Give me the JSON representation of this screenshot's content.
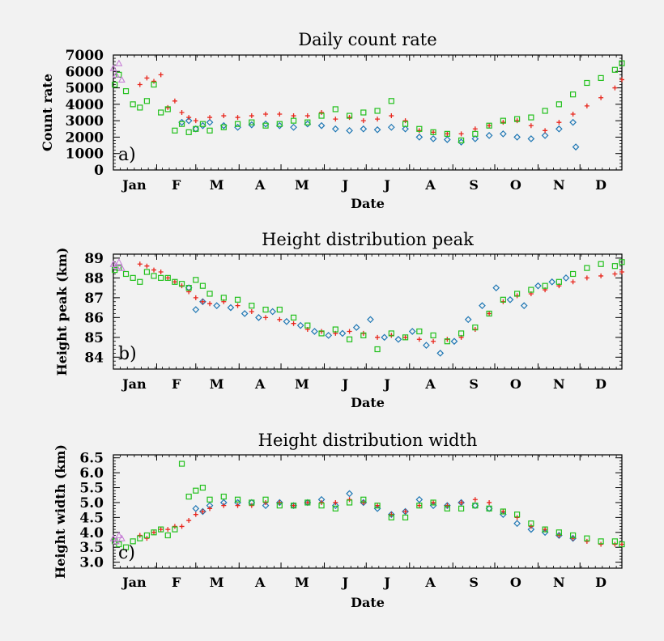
{
  "chart_data": [
    {
      "type": "scatter",
      "title": "Daily count rate",
      "ylabel": "Count rate",
      "xlabel": "Date",
      "panel_label": "a)",
      "x_tick_labels": [
        "Jan",
        "F",
        "M",
        "A",
        "M",
        "J",
        "J",
        "A",
        "S",
        "O",
        "N",
        "D"
      ],
      "x_unit": "day of year",
      "xlim": [
        1,
        365
      ],
      "ylim": [
        0,
        7000
      ],
      "y_ticks": [
        0,
        1000,
        2000,
        3000,
        4000,
        5000,
        6000,
        7000
      ],
      "y_tick_labels": [
        "0",
        "1000",
        "2000",
        "3000",
        "4000",
        "5000",
        "6000",
        "7000"
      ],
      "series": [
        {
          "color": "#1f77b4",
          "marker": "diamond",
          "x": [
            50,
            55,
            60,
            65,
            70,
            80,
            90,
            100,
            110,
            120,
            130,
            140,
            150,
            160,
            170,
            180,
            190,
            200,
            210,
            220,
            230,
            240,
            250,
            260,
            270,
            280,
            290,
            300,
            310,
            320,
            330,
            332
          ],
          "y": [
            2900,
            3000,
            2500,
            2700,
            2900,
            2700,
            2600,
            2750,
            2800,
            2700,
            2600,
            2800,
            2700,
            2500,
            2400,
            2500,
            2450,
            2600,
            2500,
            2000,
            1900,
            1850,
            1700,
            1900,
            2100,
            2200,
            2000,
            1900,
            2100,
            2500,
            2900,
            1400
          ]
        },
        {
          "color": "#e8261c",
          "marker": "plus",
          "x": [
            20,
            25,
            30,
            35,
            40,
            45,
            50,
            55,
            60,
            70,
            80,
            90,
            100,
            110,
            120,
            130,
            140,
            150,
            160,
            170,
            180,
            190,
            200,
            210,
            220,
            230,
            240,
            250,
            260,
            270,
            280,
            290,
            300,
            310,
            320,
            330,
            340,
            350,
            360,
            365
          ],
          "y": [
            5200,
            5600,
            5400,
            5800,
            3800,
            4200,
            3500,
            3200,
            3000,
            3200,
            3300,
            3200,
            3300,
            3400,
            3400,
            3300,
            3300,
            3500,
            3100,
            3200,
            3000,
            3100,
            3300,
            3000,
            2400,
            2300,
            2200,
            2200,
            2500,
            2700,
            2900,
            3000,
            2700,
            2400,
            2900,
            3400,
            3900,
            4400,
            5000,
            5500
          ]
        },
        {
          "color": "#22c01c",
          "marker": "square",
          "x": [
            2,
            5,
            10,
            15,
            20,
            25,
            30,
            35,
            40,
            45,
            50,
            55,
            60,
            65,
            70,
            80,
            90,
            100,
            110,
            120,
            130,
            140,
            150,
            160,
            170,
            180,
            190,
            200,
            210,
            220,
            230,
            240,
            250,
            260,
            270,
            280,
            290,
            300,
            310,
            320,
            330,
            340,
            350,
            360,
            365
          ],
          "y": [
            5200,
            5800,
            4800,
            4000,
            3800,
            4200,
            5200,
            3500,
            3700,
            2400,
            2800,
            2300,
            2500,
            2800,
            2400,
            2600,
            2800,
            2900,
            2700,
            2800,
            3000,
            2900,
            3300,
            3700,
            3300,
            3500,
            3600,
            4200,
            2800,
            2500,
            2300,
            2200,
            1800,
            2200,
            2700,
            3000,
            3100,
            3200,
            3600,
            4000,
            4600,
            5300,
            5600,
            6100,
            6500
          ]
        },
        {
          "color": "#c77fd6",
          "marker": "triangle",
          "x": [
            1,
            3,
            5,
            7
          ],
          "y": [
            6200,
            5800,
            6500,
            5500
          ]
        }
      ]
    },
    {
      "type": "scatter",
      "title": "Height distribution peak",
      "ylabel": "Height peak (km)",
      "xlabel": "Date",
      "panel_label": "b)",
      "x_tick_labels": [
        "Jan",
        "F",
        "M",
        "A",
        "M",
        "J",
        "J",
        "A",
        "S",
        "O",
        "N",
        "D"
      ],
      "x_unit": "day of year",
      "xlim": [
        1,
        365
      ],
      "ylim": [
        83.4,
        89.2
      ],
      "y_ticks": [
        84,
        85,
        86,
        87,
        88,
        89
      ],
      "y_tick_labels": [
        "84",
        "85",
        "86",
        "87",
        "88",
        "89"
      ],
      "series": [
        {
          "color": "#1f77b4",
          "marker": "diamond",
          "x": [
            55,
            60,
            65,
            75,
            85,
            95,
            105,
            115,
            125,
            135,
            145,
            155,
            165,
            175,
            185,
            195,
            205,
            215,
            225,
            235,
            245,
            255,
            265,
            275,
            285,
            295,
            305,
            315,
            325
          ],
          "y": [
            87.5,
            86.4,
            86.8,
            86.6,
            86.5,
            86.2,
            86.0,
            86.3,
            85.8,
            85.6,
            85.3,
            85.1,
            85.2,
            85.5,
            85.9,
            85.0,
            84.9,
            85.3,
            84.6,
            84.2,
            84.8,
            85.9,
            86.6,
            87.5,
            86.9,
            86.6,
            87.6,
            87.8,
            88.0
          ]
        },
        {
          "color": "#e8261c",
          "marker": "plus",
          "x": [
            20,
            25,
            30,
            35,
            40,
            45,
            50,
            55,
            60,
            65,
            70,
            80,
            90,
            100,
            110,
            120,
            130,
            140,
            150,
            160,
            170,
            180,
            190,
            200,
            210,
            220,
            230,
            240,
            250,
            260,
            270,
            280,
            290,
            300,
            310,
            320,
            330,
            340,
            350,
            360,
            365
          ],
          "y": [
            88.7,
            88.6,
            88.4,
            88.3,
            88.0,
            87.8,
            87.6,
            87.3,
            87.0,
            86.8,
            86.7,
            86.8,
            86.6,
            86.3,
            86.0,
            85.9,
            85.7,
            85.4,
            85.3,
            85.2,
            85.3,
            85.2,
            85.0,
            85.1,
            85.0,
            84.9,
            84.8,
            84.9,
            85.0,
            85.4,
            86.2,
            86.8,
            87.1,
            87.2,
            87.4,
            87.6,
            87.8,
            88.0,
            88.1,
            88.2,
            88.3
          ]
        },
        {
          "color": "#22c01c",
          "marker": "square",
          "x": [
            2,
            5,
            10,
            15,
            20,
            25,
            30,
            35,
            40,
            45,
            50,
            55,
            60,
            65,
            70,
            80,
            90,
            100,
            110,
            120,
            130,
            140,
            150,
            160,
            170,
            180,
            190,
            200,
            210,
            220,
            230,
            240,
            250,
            260,
            270,
            280,
            290,
            300,
            310,
            320,
            330,
            340,
            350,
            360,
            365
          ],
          "y": [
            88.4,
            88.5,
            88.2,
            88.0,
            87.8,
            88.3,
            88.1,
            88.0,
            88.0,
            87.8,
            87.7,
            87.5,
            87.9,
            87.6,
            87.2,
            87.0,
            86.9,
            86.6,
            86.4,
            86.4,
            86.0,
            85.6,
            85.2,
            85.4,
            84.9,
            85.1,
            84.4,
            85.2,
            85.0,
            85.3,
            85.1,
            84.8,
            85.2,
            85.5,
            86.2,
            86.9,
            87.2,
            87.4,
            87.6,
            87.8,
            88.2,
            88.5,
            88.7,
            88.6,
            88.8
          ]
        },
        {
          "color": "#c77fd6",
          "marker": "triangle",
          "x": [
            1,
            3,
            5,
            7
          ],
          "y": [
            88.7,
            88.6,
            88.8,
            88.5
          ]
        }
      ]
    },
    {
      "type": "scatter",
      "title": "Height distribution width",
      "ylabel": "Height width (km)",
      "xlabel": "Date",
      "panel_label": "c)",
      "x_tick_labels": [
        "Jan",
        "F",
        "M",
        "A",
        "M",
        "J",
        "J",
        "A",
        "S",
        "O",
        "N",
        "D"
      ],
      "x_unit": "day of year",
      "xlim": [
        1,
        365
      ],
      "ylim": [
        2.8,
        6.6
      ],
      "y_ticks": [
        3.0,
        3.5,
        4.0,
        4.5,
        5.0,
        5.5,
        6.0,
        6.5
      ],
      "y_tick_labels": [
        "3.0",
        "3.5",
        "4.0",
        "4.5",
        "5.0",
        "5.5",
        "6.0",
        "6.5"
      ],
      "series": [
        {
          "color": "#1f77b4",
          "marker": "diamond",
          "x": [
            60,
            65,
            70,
            80,
            90,
            100,
            110,
            120,
            130,
            140,
            150,
            160,
            170,
            180,
            190,
            200,
            210,
            220,
            230,
            240,
            250,
            260,
            270,
            280,
            290,
            300,
            310,
            320,
            330
          ],
          "y": [
            4.8,
            4.7,
            4.9,
            5.0,
            5.0,
            5.0,
            4.9,
            5.0,
            4.9,
            5.0,
            5.1,
            4.9,
            5.3,
            5.0,
            4.8,
            4.6,
            4.7,
            5.1,
            4.9,
            4.9,
            5.0,
            4.9,
            4.8,
            4.6,
            4.3,
            4.1,
            4.0,
            3.9,
            3.8
          ]
        },
        {
          "color": "#e8261c",
          "marker": "plus",
          "x": [
            20,
            25,
            30,
            35,
            40,
            45,
            50,
            55,
            60,
            65,
            70,
            80,
            90,
            100,
            110,
            120,
            130,
            140,
            150,
            160,
            170,
            180,
            190,
            200,
            210,
            220,
            230,
            240,
            250,
            260,
            270,
            280,
            290,
            300,
            310,
            320,
            330,
            340,
            350,
            360,
            365
          ],
          "y": [
            3.9,
            3.8,
            4.0,
            4.1,
            4.1,
            4.2,
            4.2,
            4.4,
            4.6,
            4.7,
            4.8,
            4.9,
            4.9,
            4.9,
            5.0,
            5.0,
            4.9,
            5.0,
            5.0,
            5.0,
            5.1,
            5.0,
            4.9,
            4.6,
            4.7,
            4.9,
            5.0,
            4.9,
            5.0,
            5.1,
            5.0,
            4.7,
            4.5,
            4.2,
            4.1,
            3.9,
            3.8,
            3.7,
            3.6,
            3.6,
            3.6
          ]
        },
        {
          "color": "#22c01c",
          "marker": "square",
          "x": [
            2,
            5,
            10,
            15,
            20,
            25,
            30,
            35,
            40,
            45,
            50,
            55,
            60,
            65,
            70,
            80,
            90,
            100,
            110,
            120,
            130,
            140,
            150,
            160,
            170,
            180,
            190,
            200,
            210,
            220,
            230,
            240,
            250,
            260,
            270,
            280,
            290,
            300,
            310,
            320,
            330,
            340,
            350,
            360,
            365
          ],
          "y": [
            3.7,
            3.6,
            3.5,
            3.7,
            3.8,
            3.9,
            4.0,
            4.1,
            3.9,
            4.1,
            6.3,
            5.2,
            5.4,
            5.5,
            5.1,
            5.2,
            5.1,
            5.0,
            5.1,
            4.9,
            4.9,
            5.0,
            4.9,
            4.8,
            5.0,
            5.1,
            4.9,
            4.5,
            4.5,
            4.9,
            5.0,
            4.8,
            4.8,
            4.9,
            4.8,
            4.7,
            4.6,
            4.3,
            4.1,
            4.0,
            3.9,
            3.8,
            3.7,
            3.7,
            3.6
          ]
        },
        {
          "color": "#c77fd6",
          "marker": "triangle",
          "x": [
            1,
            3,
            5,
            7
          ],
          "y": [
            3.8,
            3.7,
            3.9,
            3.8
          ]
        }
      ]
    }
  ]
}
